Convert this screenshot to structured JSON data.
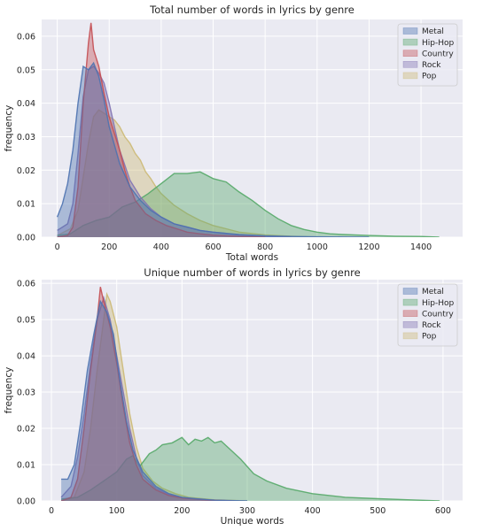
{
  "chart_data": [
    {
      "type": "area",
      "title": "Total number of words in lyrics by genre",
      "xlabel": "Total words",
      "ylabel": "frequency",
      "xlim": [
        -60,
        1560
      ],
      "ylim": [
        0,
        0.065
      ],
      "xticks": [
        0,
        200,
        400,
        600,
        800,
        1000,
        1200,
        1400
      ],
      "yticks": [
        0.0,
        0.01,
        0.02,
        0.03,
        0.04,
        0.05,
        0.06
      ],
      "ytick_labels": [
        "0.00",
        "0.01",
        "0.02",
        "0.03",
        "0.04",
        "0.05",
        "0.06"
      ],
      "grid": true,
      "legend": "top-right",
      "series": [
        {
          "name": "Metal",
          "color": "#4c72b0",
          "x": [
            0,
            20,
            40,
            60,
            80,
            100,
            120,
            140,
            160,
            180,
            200,
            240,
            280,
            320,
            360,
            400,
            450,
            500,
            550,
            600,
            700,
            800,
            900,
            1000,
            1100,
            1200
          ],
          "values": [
            0.006,
            0.01,
            0.016,
            0.026,
            0.04,
            0.051,
            0.05,
            0.052,
            0.048,
            0.041,
            0.033,
            0.022,
            0.015,
            0.011,
            0.008,
            0.006,
            0.004,
            0.003,
            0.002,
            0.0015,
            0.0008,
            0.0004,
            0.0002,
            0.0001,
            5e-05,
            0
          ]
        },
        {
          "name": "Hip-Hop",
          "color": "#55a868",
          "x": [
            0,
            50,
            100,
            150,
            200,
            250,
            300,
            350,
            400,
            450,
            500,
            550,
            600,
            650,
            700,
            750,
            800,
            850,
            900,
            950,
            1000,
            1050,
            1100,
            1200,
            1300,
            1400,
            1470
          ],
          "values": [
            0.0005,
            0.001,
            0.0035,
            0.005,
            0.006,
            0.009,
            0.0105,
            0.013,
            0.016,
            0.019,
            0.019,
            0.0195,
            0.0175,
            0.0165,
            0.0135,
            0.011,
            0.008,
            0.0055,
            0.0035,
            0.0023,
            0.0015,
            0.001,
            0.0008,
            0.0005,
            0.0003,
            0.0002,
            0
          ]
        },
        {
          "name": "Country",
          "color": "#c44e52",
          "x": [
            0,
            40,
            60,
            80,
            100,
            120,
            130,
            140,
            160,
            180,
            200,
            220,
            240,
            260,
            280,
            300,
            340,
            380,
            420,
            460,
            500,
            550,
            600,
            700,
            800
          ],
          "values": [
            0,
            0.0005,
            0.003,
            0.015,
            0.04,
            0.058,
            0.064,
            0.056,
            0.051,
            0.043,
            0.036,
            0.031,
            0.026,
            0.02,
            0.015,
            0.011,
            0.007,
            0.005,
            0.0035,
            0.0025,
            0.0015,
            0.001,
            0.0006,
            0.0002,
            0
          ]
        },
        {
          "name": "Rock",
          "color": "#8172b2",
          "x": [
            0,
            40,
            60,
            80,
            100,
            120,
            140,
            160,
            180,
            200,
            220,
            240,
            280,
            320,
            360,
            400,
            450,
            500,
            550,
            600,
            700,
            800,
            900
          ],
          "values": [
            0.002,
            0.004,
            0.01,
            0.025,
            0.042,
            0.05,
            0.051,
            0.049,
            0.046,
            0.04,
            0.033,
            0.026,
            0.017,
            0.012,
            0.0085,
            0.006,
            0.004,
            0.003,
            0.002,
            0.0015,
            0.0006,
            0.0002,
            0
          ]
        },
        {
          "name": "Pop",
          "color": "#ccb974",
          "x": [
            0,
            50,
            80,
            100,
            120,
            140,
            160,
            180,
            200,
            220,
            240,
            260,
            280,
            300,
            320,
            340,
            360,
            380,
            400,
            450,
            500,
            550,
            600,
            650,
            700,
            800,
            900,
            1000
          ],
          "values": [
            0.0005,
            0.0025,
            0.008,
            0.018,
            0.028,
            0.036,
            0.038,
            0.037,
            0.036,
            0.035,
            0.033,
            0.03,
            0.028,
            0.025,
            0.023,
            0.0195,
            0.0175,
            0.015,
            0.013,
            0.0095,
            0.007,
            0.005,
            0.0035,
            0.0025,
            0.0015,
            0.0007,
            0.0003,
            0
          ]
        }
      ]
    },
    {
      "type": "area",
      "title": "Unique number of words in lyrics by genre",
      "xlabel": "Unique words",
      "ylabel": "frequency",
      "xlim": [
        -15,
        630
      ],
      "ylim": [
        0,
        0.061
      ],
      "xticks": [
        0,
        100,
        200,
        300,
        400,
        500,
        600
      ],
      "yticks": [
        0.0,
        0.01,
        0.02,
        0.03,
        0.04,
        0.05,
        0.06
      ],
      "ytick_labels": [
        "0.00",
        "0.01",
        "0.02",
        "0.03",
        "0.04",
        "0.05",
        "0.06"
      ],
      "grid": true,
      "legend": "top-right",
      "series": [
        {
          "name": "Metal",
          "color": "#4c72b0",
          "x": [
            15,
            25,
            35,
            45,
            55,
            65,
            75,
            85,
            95,
            105,
            115,
            125,
            140,
            160,
            180,
            200,
            220,
            250,
            300
          ],
          "values": [
            0.006,
            0.006,
            0.01,
            0.022,
            0.036,
            0.046,
            0.055,
            0.052,
            0.046,
            0.033,
            0.022,
            0.014,
            0.008,
            0.004,
            0.002,
            0.001,
            0.0006,
            0.0002,
            0
          ]
        },
        {
          "name": "Hip-Hop",
          "color": "#55a868",
          "x": [
            15,
            40,
            60,
            80,
            100,
            115,
            125,
            135,
            150,
            160,
            170,
            185,
            200,
            210,
            220,
            230,
            240,
            250,
            260,
            275,
            290,
            310,
            330,
            360,
            400,
            450,
            500,
            550,
            595
          ],
          "values": [
            0.0005,
            0.001,
            0.003,
            0.0055,
            0.008,
            0.0115,
            0.0125,
            0.0095,
            0.013,
            0.014,
            0.0155,
            0.016,
            0.0175,
            0.0155,
            0.017,
            0.0165,
            0.0175,
            0.016,
            0.0165,
            0.014,
            0.0115,
            0.0075,
            0.0055,
            0.0035,
            0.002,
            0.001,
            0.0006,
            0.0003,
            0
          ]
        },
        {
          "name": "Country",
          "color": "#c44e52",
          "x": [
            15,
            30,
            40,
            50,
            60,
            70,
            75,
            80,
            90,
            100,
            110,
            120,
            130,
            140,
            160,
            180,
            200,
            240,
            280
          ],
          "values": [
            0,
            0.001,
            0.006,
            0.02,
            0.036,
            0.05,
            0.059,
            0.055,
            0.048,
            0.038,
            0.026,
            0.016,
            0.01,
            0.006,
            0.003,
            0.0015,
            0.0008,
            0.0002,
            0
          ]
        },
        {
          "name": "Rock",
          "color": "#8172b2",
          "x": [
            15,
            30,
            40,
            50,
            60,
            70,
            80,
            90,
            100,
            110,
            120,
            130,
            140,
            160,
            180,
            200,
            240,
            280
          ],
          "values": [
            0.001,
            0.004,
            0.012,
            0.024,
            0.038,
            0.05,
            0.056,
            0.05,
            0.04,
            0.03,
            0.02,
            0.012,
            0.007,
            0.0035,
            0.0018,
            0.0009,
            0.0003,
            0
          ]
        },
        {
          "name": "Pop",
          "color": "#ccb974",
          "x": [
            15,
            35,
            50,
            60,
            70,
            80,
            85,
            90,
            100,
            110,
            120,
            130,
            140,
            155,
            170,
            190,
            210,
            250,
            300
          ],
          "values": [
            0,
            0.001,
            0.008,
            0.02,
            0.036,
            0.05,
            0.057,
            0.055,
            0.048,
            0.036,
            0.024,
            0.015,
            0.009,
            0.0055,
            0.0035,
            0.002,
            0.001,
            0.0003,
            0
          ]
        }
      ]
    }
  ]
}
